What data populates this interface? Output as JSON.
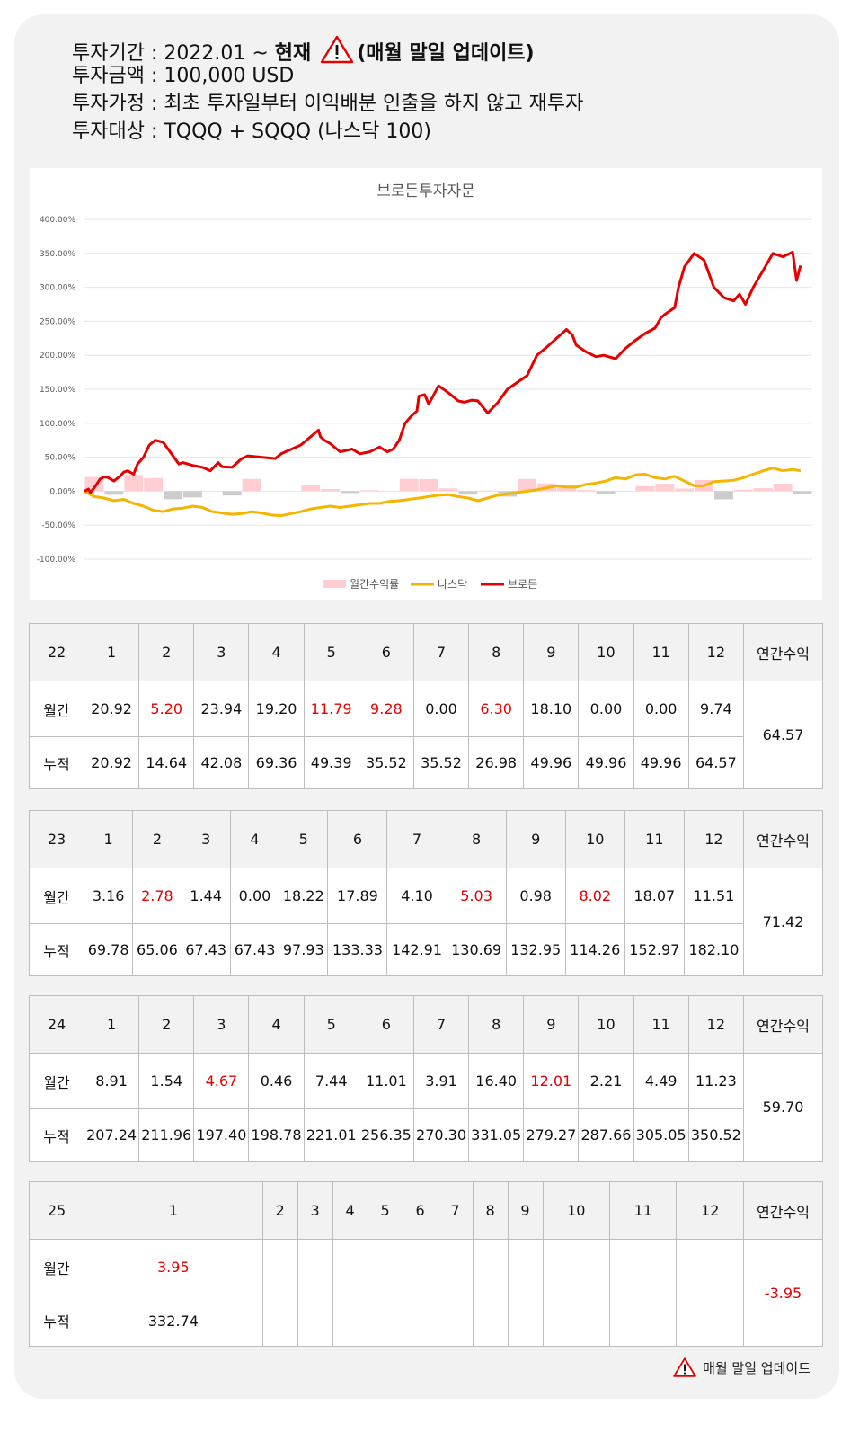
{
  "info": {
    "period_prefix": "투자기간 : 2022.01 ~ ",
    "period_now": "현재",
    "period_update": "(매월 말일 업데이트)",
    "amount": "투자금액 : 100,000 USD",
    "assumption": "투자가정 : 최초 투자일부터 이익배분 인출을 하지 않고 재투자",
    "target": "투자대상 : TQQQ + SQQQ (나스닥 100)"
  },
  "footer_note": "매월 말일 업데이트",
  "icons": {
    "warning": "warning-triangle-icon"
  },
  "colors": {
    "brand_red": "#e60000",
    "nasdaq_gold": "#f4b400",
    "monthly_pos": "#ffcdd2",
    "monthly_neg": "#cccccc",
    "chart_title": "#595959"
  },
  "chart_data": {
    "type": "line",
    "title": "브로든투자자문",
    "y_ticks": [
      "400.00%",
      "350.00%",
      "300.00%",
      "250.00%",
      "200.00%",
      "150.00%",
      "100.00%",
      "50.00%",
      "0.00%",
      "-50.00%",
      "-100.00%"
    ],
    "ylim": [
      -100,
      400
    ],
    "grid": true,
    "legend_position": "bottom",
    "legend": [
      "월간수익률",
      "나스닥",
      "브로든"
    ],
    "months": 37,
    "series": [
      {
        "name": "브로든",
        "color": "#e60000",
        "x": [
          0,
          0.2,
          0.3,
          0.5,
          0.8,
          1.0,
          1.2,
          1.5,
          1.8,
          2.0,
          2.2,
          2.5,
          2.7,
          3.0,
          3.3,
          3.6,
          4.0,
          4.3,
          4.8,
          5.0,
          5.5,
          6.0,
          6.4,
          6.8,
          7.0,
          7.5,
          8.0,
          8.3,
          9.0,
          9.7,
          10.0,
          11.0,
          11.9,
          12.0,
          12.2,
          12.5,
          13.0,
          13.6,
          14.0,
          14.5,
          15.0,
          15.4,
          15.7,
          16.0,
          16.3,
          16.6,
          16.9,
          17.0,
          17.3,
          17.5,
          18.0,
          18.5,
          19.0,
          19.3,
          19.7,
          20.0,
          20.5,
          21.0,
          21.5,
          22.0,
          22.5,
          23.0,
          23.5,
          24.0,
          24.5,
          24.8,
          25.0,
          25.5,
          26.0,
          26.4,
          27.0,
          27.5,
          28.0,
          28.5,
          29.0,
          29.3,
          29.5,
          30.0,
          30.2,
          30.5,
          31.0,
          31.5,
          32.0,
          32.5,
          33.0,
          33.3,
          33.6,
          34.0,
          34.5,
          35.0,
          35.5,
          36.0,
          36.2,
          36.4
        ],
        "y": [
          0,
          3,
          -2,
          5,
          18,
          21,
          20,
          15,
          22,
          28,
          30,
          25,
          40,
          50,
          68,
          75,
          72,
          60,
          40,
          42,
          38,
          35,
          30,
          42,
          36,
          35,
          48,
          52,
          50,
          48,
          55,
          68,
          90,
          80,
          75,
          70,
          58,
          62,
          55,
          58,
          65,
          58,
          62,
          75,
          100,
          110,
          118,
          140,
          142,
          128,
          155,
          145,
          133,
          131,
          134,
          133,
          115,
          130,
          150,
          160,
          170,
          200,
          212,
          225,
          238,
          230,
          215,
          205,
          198,
          200,
          195,
          210,
          222,
          232,
          240,
          255,
          260,
          270,
          300,
          330,
          350,
          340,
          300,
          285,
          280,
          290,
          275,
          300,
          325,
          350,
          345,
          352,
          310,
          332
        ]
      },
      {
        "name": "나스닥",
        "color": "#f4b400",
        "x": [
          0,
          0.5,
          1.0,
          1.5,
          2.0,
          2.5,
          3.0,
          3.5,
          4.0,
          4.5,
          5.0,
          5.5,
          6.0,
          6.5,
          7.0,
          7.5,
          8.0,
          8.5,
          9.0,
          9.5,
          10.0,
          10.5,
          11.0,
          11.5,
          12.0,
          12.5,
          13.0,
          13.5,
          14.0,
          14.5,
          15.0,
          15.5,
          16.0,
          16.5,
          17.0,
          17.5,
          18.0,
          18.5,
          19.0,
          19.5,
          20.0,
          20.5,
          21.0,
          21.5,
          22.0,
          22.5,
          23.0,
          23.5,
          24.0,
          24.5,
          25.0,
          25.5,
          26.0,
          26.5,
          27.0,
          27.5,
          28.0,
          28.5,
          29.0,
          29.5,
          30.0,
          30.5,
          31.0,
          31.5,
          32.0,
          32.5,
          33.0,
          33.5,
          34.0,
          34.5,
          35.0,
          35.5,
          36.0,
          36.4
        ],
        "y": [
          0,
          -8,
          -10,
          -14,
          -12,
          -18,
          -22,
          -28,
          -30,
          -26,
          -25,
          -22,
          -24,
          -30,
          -32,
          -34,
          -33,
          -30,
          -32,
          -35,
          -36,
          -33,
          -30,
          -26,
          -24,
          -22,
          -24,
          -22,
          -20,
          -18,
          -18,
          -15,
          -14,
          -12,
          -10,
          -8,
          -6,
          -5,
          -8,
          -10,
          -14,
          -10,
          -6,
          -4,
          -2,
          0,
          2,
          5,
          8,
          6,
          6,
          10,
          12,
          15,
          20,
          18,
          24,
          25,
          20,
          18,
          22,
          15,
          8,
          8,
          14,
          15,
          16,
          20,
          25,
          30,
          34,
          30,
          32,
          30
        ]
      }
    ],
    "bars": {
      "name": "월간수익률",
      "values": [
        20.92,
        -5.2,
        23.94,
        19.2,
        -11.79,
        -9.28,
        0.0,
        -6.3,
        18.1,
        0.0,
        0.0,
        9.74,
        3.16,
        -2.78,
        1.44,
        0.0,
        18.22,
        17.89,
        4.1,
        -5.03,
        0.98,
        -8.02,
        18.07,
        11.51,
        8.91,
        1.54,
        -4.67,
        0.46,
        7.44,
        11.01,
        3.91,
        16.4,
        -12.01,
        2.21,
        4.49,
        11.23,
        -3.95
      ]
    }
  },
  "labels": {
    "monthly": "월간",
    "cumulative": "누적",
    "annual": "연간수익"
  },
  "months": [
    "1",
    "2",
    "3",
    "4",
    "5",
    "6",
    "7",
    "8",
    "9",
    "10",
    "11",
    "12"
  ],
  "tables": [
    {
      "year": "22",
      "monthly": [
        "20.92",
        "5.20",
        "23.94",
        "19.20",
        "11.79",
        "9.28",
        "0.00",
        "6.30",
        "18.10",
        "0.00",
        "0.00",
        "9.74"
      ],
      "monthly_red": [
        1,
        4,
        5,
        7
      ],
      "cumulative": [
        "20.92",
        "14.64",
        "42.08",
        "69.36",
        "49.39",
        "35.52",
        "35.52",
        "26.98",
        "49.96",
        "49.96",
        "49.96",
        "64.57"
      ],
      "annual": "64.57",
      "annual_red": false
    },
    {
      "year": "23",
      "monthly": [
        "3.16",
        "2.78",
        "1.44",
        "0.00",
        "18.22",
        "17.89",
        "4.10",
        "5.03",
        "0.98",
        "8.02",
        "18.07",
        "11.51"
      ],
      "monthly_red": [
        1,
        7,
        9
      ],
      "cumulative": [
        "69.78",
        "65.06",
        "67.43",
        "67.43",
        "97.93",
        "133.33",
        "142.91",
        "130.69",
        "132.95",
        "114.26",
        "152.97",
        "182.10"
      ],
      "annual": "71.42",
      "annual_red": false
    },
    {
      "year": "24",
      "monthly": [
        "8.91",
        "1.54",
        "4.67",
        "0.46",
        "7.44",
        "11.01",
        "3.91",
        "16.40",
        "12.01",
        "2.21",
        "4.49",
        "11.23"
      ],
      "monthly_red": [
        2,
        8
      ],
      "cumulative": [
        "207.24",
        "211.96",
        "197.40",
        "198.78",
        "221.01",
        "256.35",
        "270.30",
        "331.05",
        "279.27",
        "287.66",
        "305.05",
        "350.52"
      ],
      "annual": "59.70",
      "annual_red": false
    },
    {
      "year": "25",
      "monthly": [
        "3.95",
        "",
        "",
        "",
        "",
        "",
        "",
        "",
        "",
        "",
        "",
        ""
      ],
      "monthly_red": [
        0
      ],
      "cumulative": [
        "332.74",
        "",
        "",
        "",
        "",
        "",
        "",
        "",
        "",
        "",
        "",
        ""
      ],
      "annual": "-3.95",
      "annual_red": true
    }
  ]
}
